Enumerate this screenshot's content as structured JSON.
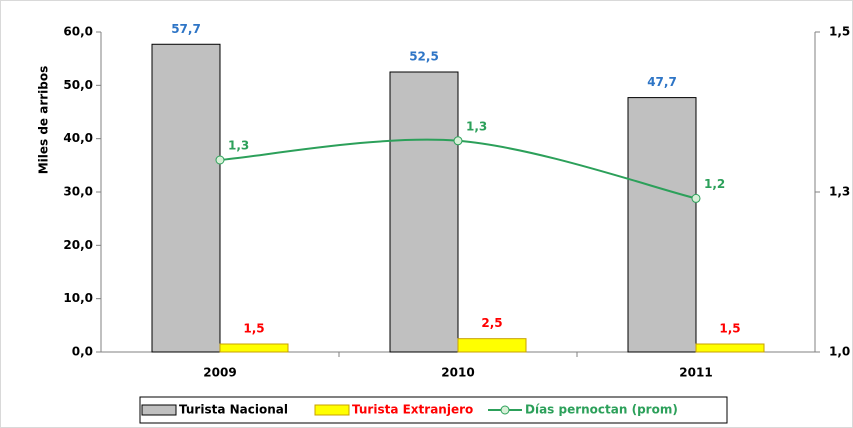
{
  "chart_data": {
    "type": "bar-line",
    "y_label": "Miles de arribos",
    "categories": [
      "2009",
      "2010",
      "2011"
    ],
    "series": [
      {
        "name": "Turista Nacional",
        "type": "bar",
        "color": "#c0c0c0",
        "label_color": "#2e75c6",
        "values": [
          57.7,
          52.5,
          47.7
        ],
        "value_labels": [
          "57,7",
          "52,5",
          "47,7"
        ]
      },
      {
        "name": "Turista Extranjero",
        "type": "bar",
        "color": "#ffff00",
        "label_color": "#ff0000",
        "values": [
          1.5,
          2.5,
          1.5
        ],
        "value_labels": [
          "1,5",
          "2,5",
          "1,5"
        ]
      },
      {
        "name": "Días pernoctan (prom)",
        "type": "line",
        "axis": "y2",
        "color": "#2ca05a",
        "label_color": "#2ca05a",
        "values": [
          1.3,
          1.33,
          1.24
        ],
        "value_labels": [
          "1,3",
          "1,3",
          "1,2"
        ]
      }
    ],
    "ylim": [
      0,
      60
    ],
    "yticks": [
      {
        "value": 0,
        "label": "0,0"
      },
      {
        "value": 10,
        "label": "10,0"
      },
      {
        "value": 20,
        "label": "20,0"
      },
      {
        "value": 30,
        "label": "30,0"
      },
      {
        "value": 40,
        "label": "40,0"
      },
      {
        "value": 50,
        "label": "50,0"
      },
      {
        "value": 60,
        "label": "60,0"
      }
    ],
    "y2lim": [
      1.0,
      1.5
    ],
    "y2ticks": [
      {
        "value": 1.0,
        "label": "1,0"
      },
      {
        "value": 1.25,
        "label": "1,3"
      },
      {
        "value": 1.5,
        "label": "1,5"
      }
    ],
    "legend": "bottom"
  }
}
